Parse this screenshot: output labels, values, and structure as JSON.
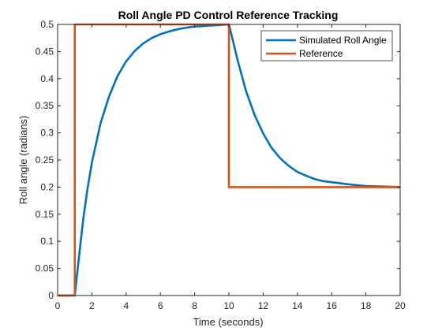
{
  "chart_data": {
    "type": "line",
    "title": "Roll Angle PD Control Reference Tracking",
    "xlabel": "Time (seconds)",
    "ylabel": "Roll angle (radians)",
    "xlim": [
      0,
      20
    ],
    "ylim": [
      0,
      0.5
    ],
    "xticks": [
      0,
      2,
      4,
      6,
      8,
      10,
      12,
      14,
      16,
      18,
      20
    ],
    "yticks": [
      0,
      0.05,
      0.1,
      0.15,
      0.2,
      0.25,
      0.3,
      0.35,
      0.4,
      0.45,
      0.5
    ],
    "grid": false,
    "legend": "top-right",
    "series": [
      {
        "name": "Simulated Roll Angle",
        "color": "#0072BD",
        "x": [
          0,
          1.0,
          1.25,
          1.5,
          1.75,
          2,
          2.5,
          3,
          3.5,
          4,
          4.5,
          5,
          5.5,
          6,
          6.5,
          7,
          7.5,
          8,
          8.5,
          9,
          9.5,
          10,
          10.25,
          10.5,
          11,
          11.5,
          12,
          12.5,
          13,
          13.5,
          14,
          14.5,
          15,
          15.5,
          16,
          17,
          18,
          19,
          20
        ],
        "y": [
          0,
          0,
          0.072,
          0.142,
          0.198,
          0.245,
          0.317,
          0.367,
          0.405,
          0.432,
          0.451,
          0.465,
          0.475,
          0.482,
          0.487,
          0.491,
          0.494,
          0.496,
          0.497,
          0.498,
          0.499,
          0.5,
          0.468,
          0.435,
          0.377,
          0.333,
          0.299,
          0.272,
          0.253,
          0.239,
          0.228,
          0.221,
          0.215,
          0.211,
          0.209,
          0.205,
          0.202,
          0.201,
          0.2
        ]
      },
      {
        "name": "Reference",
        "color": "#D95319",
        "x": [
          0,
          1.0,
          1.0,
          10.0,
          10.0,
          20
        ],
        "y": [
          0,
          0,
          0.5,
          0.5,
          0.2,
          0.2
        ]
      }
    ]
  }
}
